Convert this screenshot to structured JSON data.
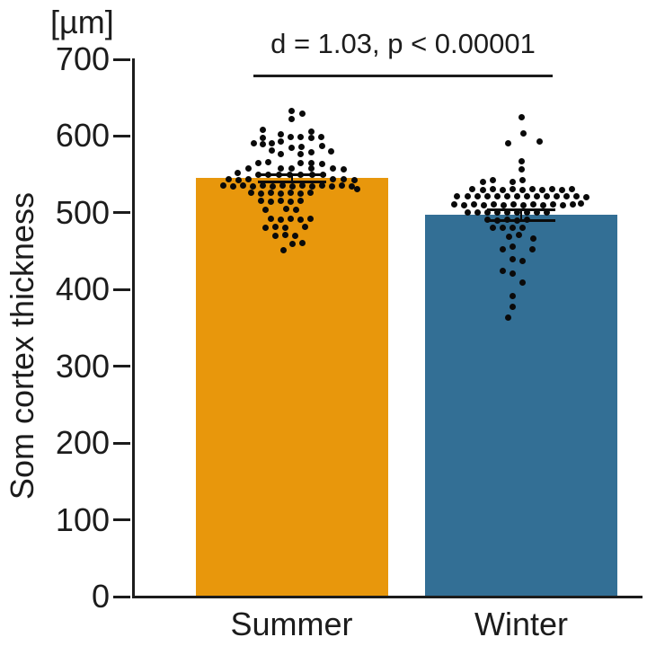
{
  "chart_data": {
    "type": "bar",
    "title": "",
    "ylabel": "Som cortex thickness",
    "y_unit_label": "[µm]",
    "xlabel": "",
    "annotation": "d = 1.03, p < 0.00001",
    "categories": [
      "Summer",
      "Winter"
    ],
    "ylim": [
      0,
      700
    ],
    "yticks": [
      0,
      100,
      200,
      300,
      400,
      500,
      600,
      700
    ],
    "grid": false,
    "legend": "none",
    "dot_color": "#0a0a0a",
    "axis_color": "#1c1c1c",
    "series": [
      {
        "name": "Summer",
        "mean": 545,
        "sem": 5,
        "color": "#E8970C",
        "points": [
          [
            0,
            633
          ],
          [
            12,
            629
          ],
          [
            0,
            622
          ],
          [
            -32,
            608
          ],
          [
            22,
            606
          ],
          [
            -12,
            602
          ],
          [
            -1,
            599
          ],
          [
            10,
            599
          ],
          [
            33,
            599
          ],
          [
            -32,
            597
          ],
          [
            22,
            597
          ],
          [
            -42,
            590
          ],
          [
            -22,
            591
          ],
          [
            -12,
            593
          ],
          [
            0,
            585
          ],
          [
            11,
            586
          ],
          [
            34,
            587
          ],
          [
            -32,
            589
          ],
          [
            -22,
            581
          ],
          [
            -12,
            577
          ],
          [
            10,
            577
          ],
          [
            22,
            579
          ],
          [
            44,
            580
          ],
          [
            -37,
            565
          ],
          [
            -26,
            566
          ],
          [
            10,
            565
          ],
          [
            22,
            565
          ],
          [
            34,
            564
          ],
          [
            -48,
            558
          ],
          [
            -60,
            552
          ],
          [
            -37,
            550
          ],
          [
            -12,
            558
          ],
          [
            0,
            558
          ],
          [
            22,
            558
          ],
          [
            46,
            558
          ],
          [
            58,
            557
          ],
          [
            -70,
            544
          ],
          [
            -59,
            542
          ],
          [
            -48,
            544
          ],
          [
            -26,
            550
          ],
          [
            -14,
            550
          ],
          [
            -2,
            550
          ],
          [
            10,
            550
          ],
          [
            23,
            550
          ],
          [
            35,
            550
          ],
          [
            46,
            544
          ],
          [
            58,
            544
          ],
          [
            70,
            542
          ],
          [
            -76,
            536
          ],
          [
            -65,
            534
          ],
          [
            -54,
            536
          ],
          [
            -43,
            534
          ],
          [
            -32,
            536
          ],
          [
            -21,
            534
          ],
          [
            -10,
            536
          ],
          [
            1,
            534
          ],
          [
            12,
            536
          ],
          [
            23,
            534
          ],
          [
            34,
            536
          ],
          [
            45,
            534
          ],
          [
            56,
            536
          ],
          [
            67,
            534
          ],
          [
            73,
            531
          ],
          [
            -45,
            526
          ],
          [
            -34,
            525
          ],
          [
            -23,
            526
          ],
          [
            -12,
            525
          ],
          [
            -1,
            526
          ],
          [
            10,
            525
          ],
          [
            21,
            526
          ],
          [
            -34,
            516
          ],
          [
            -23,
            515
          ],
          [
            -12,
            516
          ],
          [
            -1,
            515
          ],
          [
            10,
            516
          ],
          [
            -29,
            504
          ],
          [
            -6,
            505
          ],
          [
            5,
            504
          ],
          [
            -23,
            492
          ],
          [
            -12,
            491
          ],
          [
            -1,
            492
          ],
          [
            10,
            491
          ],
          [
            21,
            492
          ],
          [
            -29,
            481
          ],
          [
            -18,
            482
          ],
          [
            -7,
            481
          ],
          [
            15,
            482
          ],
          [
            -18,
            470
          ],
          [
            -7,
            471
          ],
          [
            4,
            470
          ],
          [
            1,
            459
          ],
          [
            12,
            461
          ],
          [
            -9,
            451
          ]
        ]
      },
      {
        "name": "Winter",
        "mean": 497,
        "sem": 7,
        "color": "#336F95",
        "points": [
          [
            0,
            625
          ],
          [
            2,
            603
          ],
          [
            -15,
            591
          ],
          [
            20,
            593
          ],
          [
            0,
            567
          ],
          [
            0,
            557
          ],
          [
            -43,
            540
          ],
          [
            -32,
            542
          ],
          [
            -10,
            540
          ],
          [
            1,
            542
          ],
          [
            -55,
            531
          ],
          [
            -43,
            530
          ],
          [
            -32,
            531
          ],
          [
            -21,
            530
          ],
          [
            -10,
            531
          ],
          [
            1,
            530
          ],
          [
            12,
            531
          ],
          [
            23,
            530
          ],
          [
            34,
            531
          ],
          [
            45,
            530
          ],
          [
            56,
            531
          ],
          [
            -72,
            521
          ],
          [
            -60,
            522
          ],
          [
            -49,
            521
          ],
          [
            -38,
            522
          ],
          [
            -27,
            521
          ],
          [
            -16,
            522
          ],
          [
            -5,
            521
          ],
          [
            6,
            522
          ],
          [
            17,
            521
          ],
          [
            28,
            522
          ],
          [
            39,
            521
          ],
          [
            50,
            522
          ],
          [
            61,
            521
          ],
          [
            72,
            520
          ],
          [
            -75,
            511
          ],
          [
            -64,
            510
          ],
          [
            -53,
            511
          ],
          [
            -42,
            510
          ],
          [
            -31,
            511
          ],
          [
            -20,
            510
          ],
          [
            -9,
            511
          ],
          [
            2,
            510
          ],
          [
            13,
            511
          ],
          [
            24,
            510
          ],
          [
            35,
            511
          ],
          [
            46,
            510
          ],
          [
            57,
            511
          ],
          [
            66,
            512
          ],
          [
            -60,
            501
          ],
          [
            -49,
            500
          ],
          [
            -38,
            501
          ],
          [
            -27,
            500
          ],
          [
            -16,
            501
          ],
          [
            -5,
            500
          ],
          [
            6,
            501
          ],
          [
            17,
            500
          ],
          [
            28,
            501
          ],
          [
            -38,
            491
          ],
          [
            -27,
            490
          ],
          [
            -16,
            491
          ],
          [
            -5,
            490
          ],
          [
            6,
            491
          ],
          [
            -32,
            480
          ],
          [
            -21,
            481
          ],
          [
            -10,
            480
          ],
          [
            1,
            481
          ],
          [
            -14,
            469
          ],
          [
            -3,
            471
          ],
          [
            13,
            467
          ],
          [
            -21,
            453
          ],
          [
            -10,
            456
          ],
          [
            12,
            453
          ],
          [
            -10,
            439
          ],
          [
            1,
            437
          ],
          [
            -21,
            424
          ],
          [
            -10,
            421
          ],
          [
            1,
            409
          ],
          [
            -10,
            392
          ],
          [
            -10,
            377
          ],
          [
            -15,
            363
          ]
        ]
      }
    ]
  }
}
